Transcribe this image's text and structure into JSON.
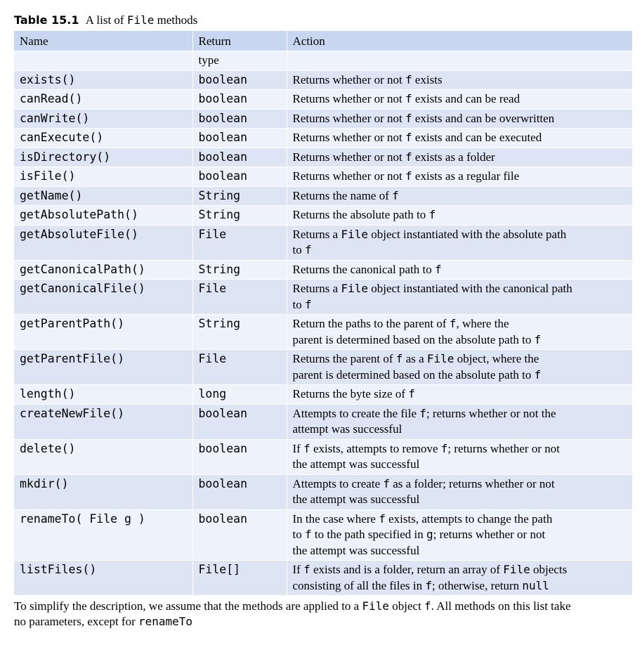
{
  "caption": {
    "label": "Table 15.1",
    "text_before": "A list of",
    "code": "File",
    "text_after": "methods"
  },
  "headers": {
    "name": "Name",
    "return_line1": "Return",
    "return_line2": "type",
    "action": "Action"
  },
  "rows": [
    {
      "name": "exists()",
      "ret": "boolean",
      "action": [
        [
          "t",
          "Returns whether or not "
        ],
        [
          "c",
          "f"
        ],
        [
          "t",
          " exists"
        ]
      ]
    },
    {
      "name": "canRead()",
      "ret": "boolean",
      "action": [
        [
          "t",
          "Returns whether or not "
        ],
        [
          "c",
          "f"
        ],
        [
          "t",
          " exists and can be read"
        ]
      ]
    },
    {
      "name": "canWrite()",
      "ret": "boolean",
      "action": [
        [
          "t",
          "Returns whether or not "
        ],
        [
          "c",
          "f"
        ],
        [
          "t",
          " exists and can be overwritten"
        ]
      ]
    },
    {
      "name": "canExecute()",
      "ret": "boolean",
      "action": [
        [
          "t",
          "Returns whether or not "
        ],
        [
          "c",
          "f"
        ],
        [
          "t",
          " exists and can be executed"
        ]
      ]
    },
    {
      "name": "isDirectory()",
      "ret": "boolean",
      "action": [
        [
          "t",
          "Returns whether or not "
        ],
        [
          "c",
          "f"
        ],
        [
          "t",
          " exists as a folder"
        ]
      ]
    },
    {
      "name": "isFile()",
      "ret": "boolean",
      "action": [
        [
          "t",
          "Returns whether or not "
        ],
        [
          "c",
          "f"
        ],
        [
          "t",
          " exists as a regular file"
        ]
      ]
    },
    {
      "name": "getName()",
      "ret": "String",
      "action": [
        [
          "t",
          "Returns the name of "
        ],
        [
          "c",
          "f"
        ]
      ]
    },
    {
      "name": "getAbsolutePath()",
      "ret": "String",
      "action": [
        [
          "t",
          "Returns the absolute path to "
        ],
        [
          "c",
          "f"
        ]
      ]
    },
    {
      "name": "getAbsoluteFile()",
      "ret": "File",
      "action": [
        [
          "t",
          "Returns a "
        ],
        [
          "c",
          "File"
        ],
        [
          "t",
          " object instantiated with the absolute path"
        ],
        [
          "br",
          ""
        ],
        [
          "t",
          "to "
        ],
        [
          "c",
          "f"
        ]
      ]
    },
    {
      "name": "getCanonicalPath()",
      "ret": "String",
      "action": [
        [
          "t",
          "Returns the canonical path to "
        ],
        [
          "c",
          "f"
        ]
      ]
    },
    {
      "name": "getCanonicalFile()",
      "ret": "File",
      "action": [
        [
          "t",
          "Returns a "
        ],
        [
          "c",
          "File"
        ],
        [
          "t",
          " object instantiated with the canonical path"
        ],
        [
          "br",
          ""
        ],
        [
          "t",
          "to "
        ],
        [
          "c",
          "f"
        ]
      ]
    },
    {
      "name": "getParentPath()",
      "ret": "String",
      "action": [
        [
          "t",
          "Return the paths to the parent of "
        ],
        [
          "c",
          "f"
        ],
        [
          "t",
          ", where the"
        ],
        [
          "br",
          ""
        ],
        [
          "t",
          "parent is determined based on the absolute path to "
        ],
        [
          "c",
          "f"
        ]
      ]
    },
    {
      "name": "getParentFile()",
      "ret": "File",
      "action": [
        [
          "t",
          "Returns the parent of "
        ],
        [
          "c",
          "f"
        ],
        [
          "t",
          " as a "
        ],
        [
          "c",
          "File"
        ],
        [
          "t",
          " object, where the"
        ],
        [
          "br",
          ""
        ],
        [
          "t",
          "parent is determined based on the absolute path to "
        ],
        [
          "c",
          "f"
        ]
      ]
    },
    {
      "name": "length()",
      "ret": "long",
      "action": [
        [
          "t",
          "Returns the byte size of "
        ],
        [
          "c",
          "f"
        ]
      ]
    },
    {
      "name": "createNewFile()",
      "ret": "boolean",
      "action": [
        [
          "t",
          "Attempts to create the file "
        ],
        [
          "c",
          "f"
        ],
        [
          "t",
          "; returns whether or not the"
        ],
        [
          "br",
          ""
        ],
        [
          "t",
          "attempt was successful"
        ]
      ]
    },
    {
      "name": "delete()",
      "ret": "boolean",
      "action": [
        [
          "t",
          "If "
        ],
        [
          "c",
          "f"
        ],
        [
          "t",
          " exists, attempts to remove "
        ],
        [
          "c",
          "f"
        ],
        [
          "t",
          "; returns whether or not"
        ],
        [
          "br",
          ""
        ],
        [
          "t",
          "the attempt was successful"
        ]
      ]
    },
    {
      "name": "mkdir()",
      "ret": "boolean",
      "action": [
        [
          "t",
          "Attempts to create "
        ],
        [
          "c",
          "f"
        ],
        [
          "t",
          " as a folder; returns whether or not"
        ],
        [
          "br",
          ""
        ],
        [
          "t",
          "the attempt was successful"
        ]
      ]
    },
    {
      "name": "renameTo( File g )",
      "ret": "boolean",
      "action": [
        [
          "t",
          "In the case where "
        ],
        [
          "c",
          "f"
        ],
        [
          "t",
          " exists, attempts to change the path"
        ],
        [
          "br",
          ""
        ],
        [
          "t",
          "to "
        ],
        [
          "c",
          "f"
        ],
        [
          "t",
          " to the path specified in "
        ],
        [
          "c",
          "g"
        ],
        [
          "t",
          "; returns whether or not"
        ],
        [
          "br",
          ""
        ],
        [
          "t",
          "the attempt was successful"
        ]
      ]
    },
    {
      "name": "listFiles()",
      "ret": "File[]",
      "action": [
        [
          "t",
          "If "
        ],
        [
          "c",
          "f"
        ],
        [
          "t",
          " exists and is a folder, return an array of "
        ],
        [
          "c",
          "File"
        ],
        [
          "t",
          " objects"
        ],
        [
          "br",
          ""
        ],
        [
          "t",
          "consisting of all the files in "
        ],
        [
          "c",
          "f"
        ],
        [
          "t",
          "; otherwise, return "
        ],
        [
          "c",
          "null"
        ]
      ]
    }
  ],
  "footnote": [
    [
      "t",
      "To simplify the description, we assume that the methods are applied to a "
    ],
    [
      "c",
      "File"
    ],
    [
      "t",
      " object "
    ],
    [
      "c",
      "f"
    ],
    [
      "t",
      ". All methods on this list take"
    ],
    [
      "br",
      ""
    ],
    [
      "t",
      "no parameters, except for "
    ],
    [
      "c",
      "renameTo"
    ]
  ]
}
